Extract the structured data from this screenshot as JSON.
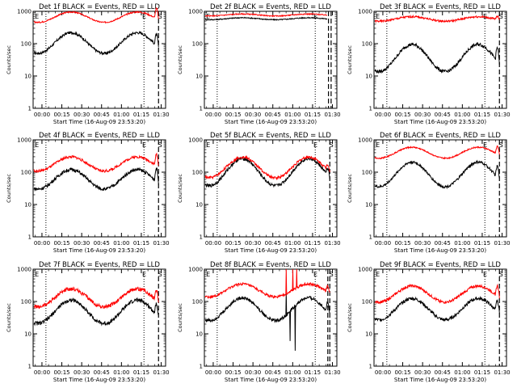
{
  "figure": {
    "xlabel": "Start Time (16-Aug-09 23:53:20)",
    "ylabel": "Counts/sec"
  },
  "colors": {
    "events": "#000000",
    "lld": "#ff0000",
    "axis": "#000000"
  },
  "axes": {
    "y_scale": "log",
    "ylim": [
      1,
      1000
    ],
    "y_ticks": [
      "1",
      "10",
      "100",
      "1000"
    ],
    "x_ticks": [
      "00:00",
      "00:15",
      "00:30",
      "00:45",
      "01:00",
      "01:15",
      "01:30"
    ],
    "x_tick_minutes": [
      0,
      15,
      30,
      45,
      60,
      75,
      90
    ],
    "xlim_minutes": [
      -6.67,
      93.33
    ]
  },
  "chart_data": [
    {
      "type": "line",
      "title": "Det 1f BLACK = Events, RED = LLD",
      "markers": [
        {
          "text": "E",
          "x": -6
        },
        {
          "text": "E",
          "x": 75
        },
        {
          "text": "S",
          "x": 87
        }
      ],
      "dotted_lines": [
        3,
        77
      ],
      "dashed_lines": [
        88
      ],
      "series": [
        {
          "name": "Events",
          "color": "black",
          "base": 105,
          "amp": 0.32,
          "phase": 22,
          "noise": 0.04,
          "x": [
            -6,
            88
          ],
          "end_spike": 1.0
        },
        {
          "name": "LLD",
          "color": "red",
          "base": 660,
          "amp": 0.16,
          "phase": 22,
          "noise": 0.02,
          "x": [
            -6,
            88
          ],
          "end_spike": 0.9
        }
      ]
    },
    {
      "type": "line",
      "title": "Det 2f BLACK = Events, RED = LLD",
      "markers": [
        {
          "text": "E",
          "x": -6
        },
        {
          "text": "E",
          "x": 75
        }
      ],
      "dotted_lines": [
        3,
        77
      ],
      "dashed_lines": [
        87,
        89
      ],
      "series": [
        {
          "name": "Events",
          "color": "black",
          "base": 590,
          "amp": 0.03,
          "phase": 22,
          "noise": 0.015,
          "x": [
            -6,
            86
          ],
          "end_spike": 0
        },
        {
          "name": "LLD",
          "color": "red",
          "base": 770,
          "amp": 0.03,
          "phase": 22,
          "noise": 0.015,
          "x": [
            -6,
            86
          ],
          "end_spike": 0
        }
      ]
    },
    {
      "type": "line",
      "title": "Det 3f BLACK = Events, RED = LLD",
      "markers": [
        {
          "text": "E",
          "x": -6
        },
        {
          "text": "E",
          "x": 75
        },
        {
          "text": "S",
          "x": 87
        }
      ],
      "dotted_lines": [
        3,
        77
      ],
      "dashed_lines": [
        88
      ],
      "series": [
        {
          "name": "Events",
          "color": "black",
          "base": 36,
          "amp": 0.42,
          "phase": 22,
          "noise": 0.05,
          "x": [
            -6,
            88
          ],
          "end_spike": 1.2
        },
        {
          "name": "LLD",
          "color": "red",
          "base": 580,
          "amp": 0.07,
          "phase": 22,
          "noise": 0.03,
          "x": [
            -6,
            88
          ],
          "end_spike": 0.3
        }
      ]
    },
    {
      "type": "line",
      "title": "Det 4f BLACK = Events, RED = LLD",
      "markers": [
        {
          "text": "E",
          "x": -6
        },
        {
          "text": "E",
          "x": 75
        },
        {
          "text": "S",
          "x": 87
        }
      ],
      "dotted_lines": [
        3,
        77
      ],
      "dashed_lines": [
        88
      ],
      "series": [
        {
          "name": "Events",
          "color": "black",
          "base": 60,
          "amp": 0.3,
          "phase": 22,
          "noise": 0.05,
          "x": [
            -6,
            88
          ],
          "end_spike": 1.2
        },
        {
          "name": "LLD",
          "color": "red",
          "base": 180,
          "amp": 0.22,
          "phase": 22,
          "noise": 0.04,
          "x": [
            -6,
            88
          ],
          "end_spike": 1.0
        }
      ]
    },
    {
      "type": "line",
      "title": "Det 5f BLACK = Events, RED = LLD",
      "markers": [
        {
          "text": "E",
          "x": -6
        },
        {
          "text": "E",
          "x": 75
        },
        {
          "text": "S",
          "x": 87
        }
      ],
      "dotted_lines": [
        3,
        77
      ],
      "dashed_lines": [
        88
      ],
      "series": [
        {
          "name": "Events",
          "color": "black",
          "base": 100,
          "amp": 0.42,
          "phase": 22,
          "noise": 0.05,
          "x": [
            -6,
            88
          ],
          "end_spike": 0.6
        },
        {
          "name": "LLD",
          "color": "red",
          "base": 140,
          "amp": 0.32,
          "phase": 22,
          "noise": 0.04,
          "x": [
            -6,
            88
          ],
          "end_spike": 0.5
        }
      ]
    },
    {
      "type": "line",
      "title": "Det 6f BLACK = Events, RED = LLD",
      "markers": [
        {
          "text": "E",
          "x": -6
        },
        {
          "text": "E",
          "x": 75
        },
        {
          "text": "S",
          "x": 87
        }
      ],
      "dotted_lines": [
        3,
        77
      ],
      "dashed_lines": [
        88
      ],
      "series": [
        {
          "name": "Events",
          "color": "black",
          "base": 85,
          "amp": 0.38,
          "phase": 22,
          "noise": 0.04,
          "x": [
            -6,
            88
          ],
          "end_spike": 1.0
        },
        {
          "name": "LLD",
          "color": "red",
          "base": 400,
          "amp": 0.17,
          "phase": 22,
          "noise": 0.02,
          "x": [
            -6,
            88
          ],
          "end_spike": 0.7
        }
      ]
    },
    {
      "type": "line",
      "title": "Det 7f BLACK = Events, RED = LLD",
      "markers": [
        {
          "text": "E",
          "x": -6
        },
        {
          "text": "E",
          "x": 75
        },
        {
          "text": "S",
          "x": 87
        }
      ],
      "dotted_lines": [
        3,
        77
      ],
      "dashed_lines": [
        88
      ],
      "series": [
        {
          "name": "Events",
          "color": "black",
          "base": 48,
          "amp": 0.36,
          "phase": 22,
          "noise": 0.06,
          "x": [
            -6,
            88
          ],
          "end_spike": 1.0
        },
        {
          "name": "LLD",
          "color": "red",
          "base": 130,
          "amp": 0.28,
          "phase": 22,
          "noise": 0.06,
          "x": [
            -6,
            88
          ],
          "end_spike": 0.9
        }
      ]
    },
    {
      "type": "line",
      "title": "Det 8f BLACK = Events, RED = LLD",
      "markers": [
        {
          "text": "E",
          "x": -6
        },
        {
          "text": "E",
          "x": 75
        },
        {
          "text": "S",
          "x": 87
        }
      ],
      "dotted_lines": [
        3,
        77
      ],
      "dashed_lines": [
        86.5,
        88
      ],
      "series": [
        {
          "name": "Events",
          "color": "black",
          "base": 58,
          "amp": 0.35,
          "phase": 22,
          "noise": 0.05,
          "x": [
            -6,
            88
          ],
          "end_spike": 0.8,
          "spikes": [
            {
              "x": 55,
              "v": 200
            },
            {
              "x": 58,
              "v": 6
            },
            {
              "x": 62,
              "v": 3
            }
          ]
        },
        {
          "name": "LLD",
          "color": "red",
          "base": 220,
          "amp": 0.2,
          "phase": 22,
          "noise": 0.04,
          "x": [
            -6,
            88
          ],
          "end_spike": 0.5,
          "spikes": [
            {
              "x": 55,
              "v": 1000
            },
            {
              "x": 60,
              "v": 1000
            },
            {
              "x": 63,
              "v": 1000
            }
          ]
        }
      ]
    },
    {
      "type": "line",
      "title": "Det 9f BLACK = Events, RED = LLD",
      "markers": [
        {
          "text": "E",
          "x": -6
        },
        {
          "text": "E",
          "x": 75
        },
        {
          "text": "S",
          "x": 87
        }
      ],
      "dotted_lines": [
        3,
        77
      ],
      "dashed_lines": [
        88
      ],
      "series": [
        {
          "name": "Events",
          "color": "black",
          "base": 58,
          "amp": 0.33,
          "phase": 22,
          "noise": 0.05,
          "x": [
            -6,
            88
          ],
          "end_spike": 1.0
        },
        {
          "name": "LLD",
          "color": "red",
          "base": 170,
          "amp": 0.25,
          "phase": 22,
          "noise": 0.04,
          "x": [
            -6,
            88
          ],
          "end_spike": 0.9
        }
      ]
    }
  ]
}
